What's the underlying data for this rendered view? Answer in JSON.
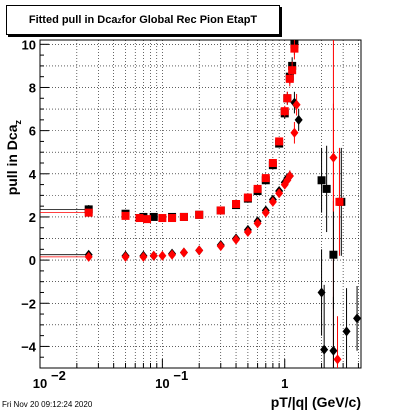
{
  "title": {
    "main": "Fitted pull in Dca",
    "sub": "z",
    "rest": " for Global Rec Pion EtapT"
  },
  "footer_text": "Fri Nov 20 09:12:24 2020",
  "chart_data": {
    "type": "scatter",
    "title": "Fitted pull in Dcaz for Global Rec Pion EtapT",
    "xlabel": "pT/|q| (GeV/c)",
    "ylabel": "pull in Dca",
    "ylabel_sub": "z",
    "xscale": "log",
    "xlim": [
      0.01,
      4.2
    ],
    "ylim": [
      -5.0,
      10.2
    ],
    "grid": true,
    "x_tick_labels": [
      {
        "value": 0.01,
        "base": "10",
        "exp": "−2"
      },
      {
        "value": 0.1,
        "base": "10",
        "exp": "−1"
      },
      {
        "value": 1,
        "base": "1",
        "exp": ""
      }
    ],
    "y_ticks": [
      -4,
      -2,
      0,
      2,
      4,
      6,
      8,
      10
    ],
    "y_tick_labels": [
      "−4",
      "−2",
      "0",
      "2",
      "4",
      "6",
      "8",
      "10"
    ],
    "vline": {
      "x": 2.5,
      "color": "#ff0000"
    },
    "series": [
      {
        "color": "#000000",
        "marker": "square",
        "x": [
          0.025,
          0.05,
          0.07,
          0.085,
          0.12,
          0.15,
          0.2,
          0.3,
          0.4,
          0.5,
          0.6,
          0.7,
          0.8,
          0.9,
          1.0,
          1.05,
          1.1,
          1.15,
          1.2,
          2.0,
          2.2,
          2.5,
          2.9
        ],
        "y": [
          2.35,
          2.15,
          2.0,
          2.0,
          2.0,
          2.0,
          2.1,
          2.3,
          2.55,
          2.85,
          3.2,
          3.7,
          4.4,
          5.4,
          6.8,
          7.5,
          8.5,
          9.0,
          10.0,
          3.7,
          3.3,
          0.25,
          2.7
        ],
        "err": [
          0.2,
          0.15,
          0.1,
          0.1,
          0.1,
          0.05,
          0.05,
          0.05,
          0.05,
          0.05,
          0.05,
          0.1,
          0.1,
          0.15,
          0.25,
          0.3,
          0.35,
          0.4,
          0.5,
          1.5,
          2.0,
          2.5,
          2.5
        ]
      },
      {
        "color": "#000000",
        "marker": "diamond",
        "x": [
          0.025,
          0.05,
          0.07,
          0.085,
          0.12,
          0.15,
          0.2,
          0.3,
          0.4,
          0.5,
          0.6,
          0.7,
          0.8,
          0.9,
          1.0,
          1.05,
          1.1,
          1.2,
          1.3,
          2.0,
          2.1,
          2.5,
          3.2,
          3.9
        ],
        "y": [
          0.25,
          0.2,
          0.2,
          0.2,
          0.3,
          0.35,
          0.45,
          0.7,
          1.0,
          1.4,
          1.8,
          2.3,
          2.8,
          3.2,
          3.6,
          3.8,
          3.9,
          7.3,
          6.5,
          -1.5,
          -4.15,
          -4.2,
          -3.3,
          -2.7
        ],
        "err": [
          0.05,
          0.05,
          0.05,
          0.05,
          0.05,
          0.05,
          0.05,
          0.05,
          0.05,
          0.05,
          0.05,
          0.05,
          0.1,
          0.1,
          0.2,
          0.2,
          0.25,
          0.5,
          0.5,
          2.0,
          3.0,
          2.5,
          2.0,
          1.5
        ]
      },
      {
        "color": "#ff0000",
        "marker": "square",
        "x": [
          0.025,
          0.05,
          0.065,
          0.075,
          0.1,
          0.12,
          0.15,
          0.2,
          0.3,
          0.4,
          0.5,
          0.6,
          0.7,
          0.8,
          0.9,
          1.0,
          1.05,
          1.1,
          1.15,
          1.2,
          2.8
        ],
        "y": [
          2.2,
          2.05,
          1.95,
          1.9,
          1.95,
          1.95,
          2.0,
          2.1,
          2.3,
          2.6,
          2.9,
          3.3,
          3.8,
          4.5,
          5.5,
          6.9,
          7.5,
          8.4,
          8.8,
          9.8,
          2.7
        ],
        "err": [
          0.15,
          0.1,
          0.1,
          0.1,
          0.05,
          0.05,
          0.05,
          0.05,
          0.05,
          0.05,
          0.05,
          0.05,
          0.1,
          0.1,
          0.15,
          0.25,
          0.3,
          0.35,
          0.4,
          0.5,
          2.5
        ]
      },
      {
        "color": "#ff0000",
        "marker": "diamond",
        "x": [
          0.025,
          0.05,
          0.07,
          0.085,
          0.1,
          0.12,
          0.15,
          0.2,
          0.3,
          0.4,
          0.5,
          0.6,
          0.7,
          0.8,
          0.9,
          1.0,
          1.05,
          1.1,
          1.2,
          1.25,
          2.5,
          2.7
        ],
        "y": [
          0.15,
          0.15,
          0.15,
          0.2,
          0.2,
          0.25,
          0.35,
          0.45,
          0.65,
          0.95,
          1.3,
          1.7,
          2.2,
          2.7,
          3.1,
          3.5,
          3.7,
          3.9,
          5.9,
          7.2,
          4.75,
          -4.6
        ],
        "err": [
          0.05,
          0.05,
          0.05,
          0.05,
          0.05,
          0.05,
          0.05,
          0.05,
          0.05,
          0.05,
          0.05,
          0.05,
          0.05,
          0.1,
          0.1,
          0.2,
          0.2,
          0.25,
          0.5,
          0.5,
          2.5,
          2.0
        ]
      }
    ]
  }
}
